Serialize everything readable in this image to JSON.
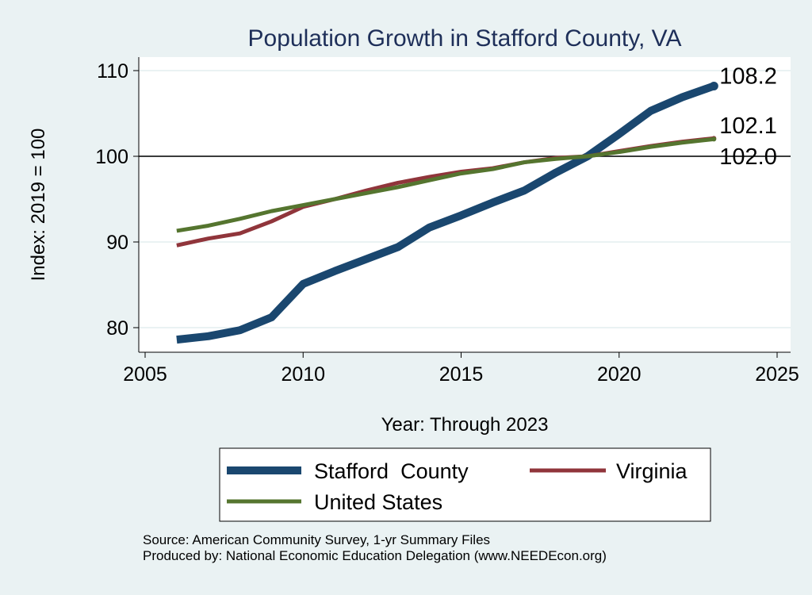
{
  "chart_data": {
    "type": "line",
    "title": "Population Growth in Stafford County, VA",
    "xlabel": "Year: Through 2023",
    "ylabel": "Index: 2019 = 100",
    "xlim": [
      2005,
      2025
    ],
    "ylim": [
      77,
      111
    ],
    "xticks": [
      2005,
      2010,
      2015,
      2020,
      2025
    ],
    "yticks": [
      80,
      90,
      100,
      110
    ],
    "reference_line": 100,
    "grid": true,
    "legend_position": "bottom",
    "x": [
      2006,
      2007,
      2008,
      2009,
      2010,
      2011,
      2012,
      2013,
      2014,
      2015,
      2016,
      2017,
      2018,
      2019,
      2020,
      2021,
      2022,
      2023
    ],
    "series": [
      {
        "name": "Stafford  County",
        "color": "#1a476f",
        "end_label": "108.2",
        "values": [
          78.6,
          79.0,
          79.7,
          81.2,
          85.1,
          86.6,
          88.0,
          89.4,
          91.7,
          93.1,
          94.6,
          96.0,
          98.1,
          100.0,
          102.6,
          105.3,
          106.9,
          108.2
        ]
      },
      {
        "name": "Virginia",
        "color": "#90353b",
        "end_label": "102.1",
        "values": [
          89.6,
          90.4,
          91.0,
          92.4,
          94.1,
          95.0,
          96.0,
          96.9,
          97.6,
          98.2,
          98.6,
          99.3,
          99.8,
          100.0,
          100.6,
          101.2,
          101.7,
          102.1
        ]
      },
      {
        "name": "United States",
        "color": "#55752f",
        "end_label": "102.0",
        "values": [
          91.3,
          91.9,
          92.7,
          93.6,
          94.3,
          95.0,
          95.7,
          96.4,
          97.2,
          98.0,
          98.5,
          99.3,
          99.7,
          100.0,
          100.5,
          101.1,
          101.6,
          102.0
        ]
      }
    ],
    "notes": [
      "Source: American Community Survey, 1-yr Summary Files",
      "Produced by: National Economic Education Delegation (www.NEEDEcon.org)"
    ]
  }
}
